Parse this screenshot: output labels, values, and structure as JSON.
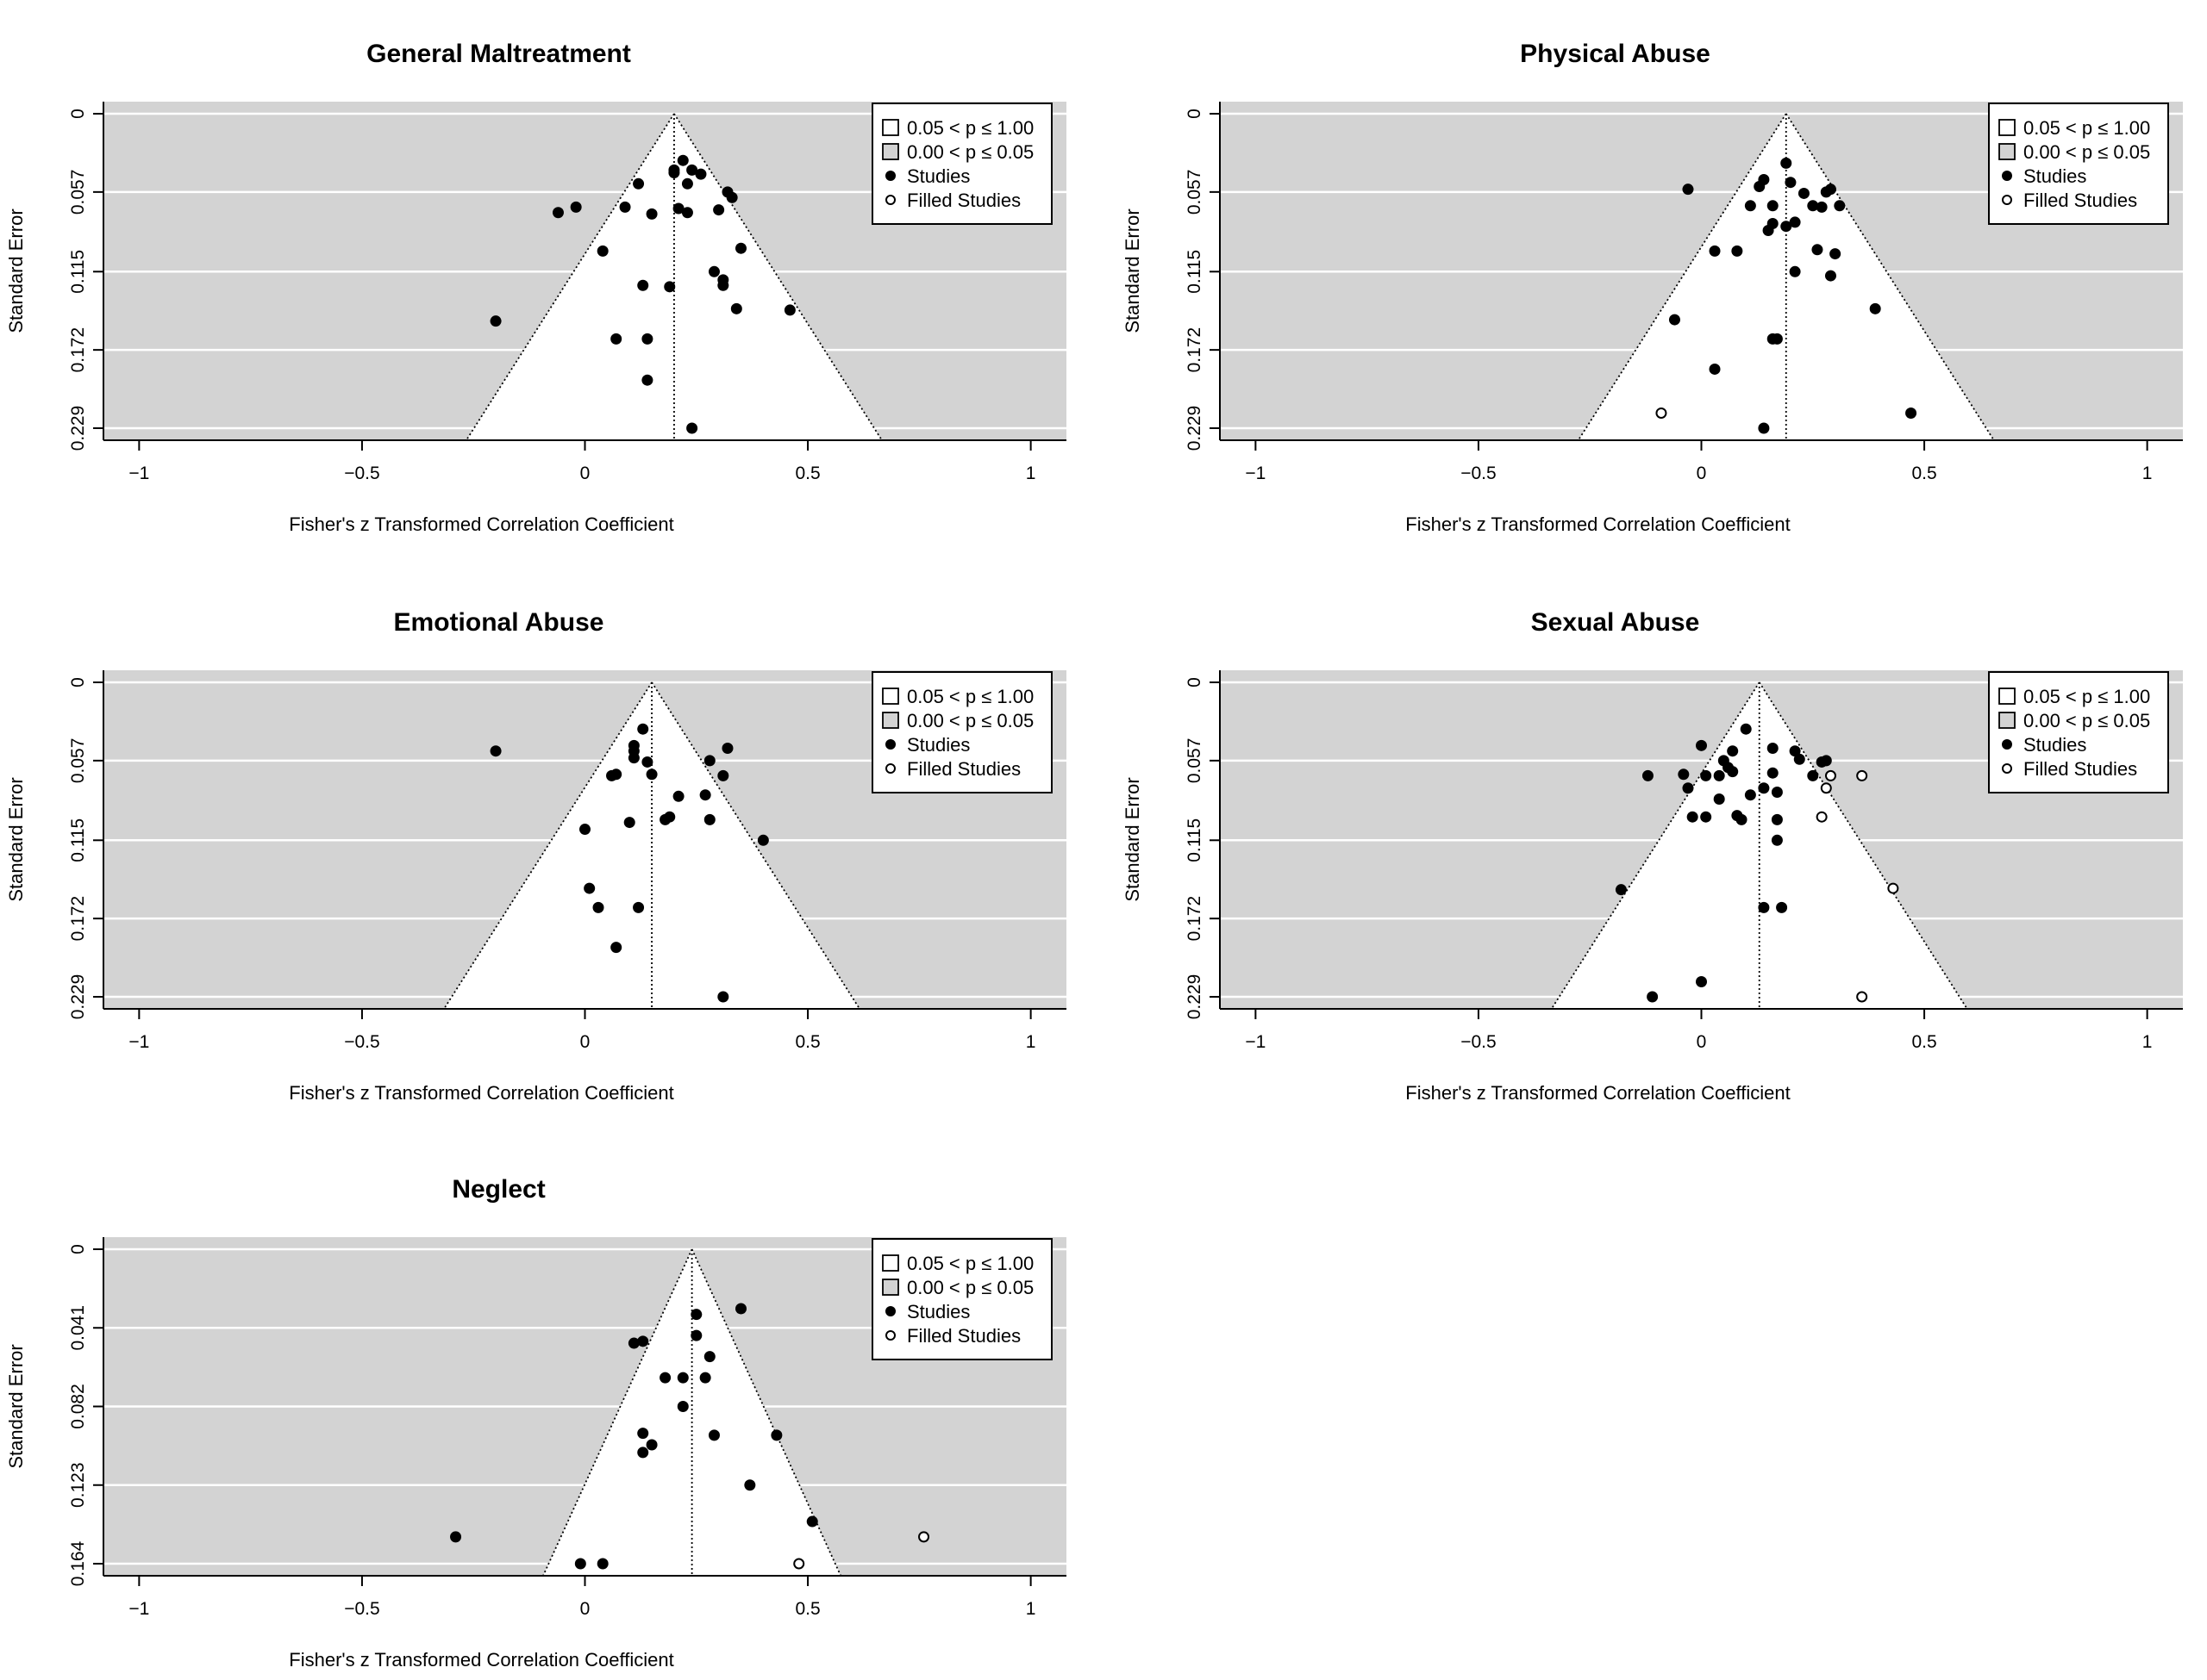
{
  "chart_data": [
    {
      "type": "scatter",
      "subtype": "funnel",
      "title": "General Maltreatment",
      "xlabel": "Fisher's z Transformed Correlation Coefficient",
      "ylabel": "Standard Error",
      "xlim": [
        -1.08,
        1.08
      ],
      "ylim": [
        0.229,
        0
      ],
      "xticks": [
        "−1",
        "−0.5",
        "0",
        "0.5",
        "1"
      ],
      "xtick_values": [
        -1,
        -0.5,
        0,
        0.5,
        1
      ],
      "yticks": [
        "0",
        "0.057",
        "0.115",
        "0.172",
        "0.229"
      ],
      "ytick_values": [
        0,
        0.057,
        0.115,
        0.172,
        0.229
      ],
      "estimate": 0.2,
      "legend": [
        "0.05 < p ≤ 1.00",
        "0.00 < p ≤ 0.05",
        "Studies",
        "Filled Studies"
      ],
      "legend_position": "top-right",
      "studies": [
        [
          0.2,
          0.041
        ],
        [
          0.2,
          0.043
        ],
        [
          0.22,
          0.034
        ],
        [
          0.24,
          0.041
        ],
        [
          0.26,
          0.044
        ],
        [
          0.23,
          0.051
        ],
        [
          0.12,
          0.051
        ],
        [
          0.32,
          0.057
        ],
        [
          0.33,
          0.061
        ],
        [
          0.21,
          0.069
        ],
        [
          0.23,
          0.072
        ],
        [
          0.3,
          0.07
        ],
        [
          0.15,
          0.073
        ],
        [
          0.09,
          0.068
        ],
        [
          -0.02,
          0.068
        ],
        [
          -0.06,
          0.072
        ],
        [
          0.04,
          0.1
        ],
        [
          0.35,
          0.098
        ],
        [
          0.29,
          0.115
        ],
        [
          0.31,
          0.121
        ],
        [
          0.31,
          0.125
        ],
        [
          0.13,
          0.125
        ],
        [
          0.19,
          0.126
        ],
        [
          0.34,
          0.142
        ],
        [
          0.46,
          0.143
        ],
        [
          -0.2,
          0.151
        ],
        [
          0.07,
          0.164
        ],
        [
          0.14,
          0.164
        ],
        [
          0.14,
          0.194
        ],
        [
          0.24,
          0.229
        ]
      ],
      "filled_studies": []
    },
    {
      "type": "scatter",
      "subtype": "funnel",
      "title": "Physical Abuse",
      "xlabel": "Fisher's z Transformed Correlation Coefficient",
      "ylabel": "Standard Error",
      "xlim": [
        -1.08,
        1.08
      ],
      "ylim": [
        0.229,
        0
      ],
      "xticks": [
        "−1",
        "−0.5",
        "0",
        "0.5",
        "1"
      ],
      "xtick_values": [
        -1,
        -0.5,
        0,
        0.5,
        1
      ],
      "yticks": [
        "0",
        "0.057",
        "0.115",
        "0.172",
        "0.229"
      ],
      "ytick_values": [
        0,
        0.057,
        0.115,
        0.172,
        0.229
      ],
      "estimate": 0.19,
      "legend": [
        "0.05 < p ≤ 1.00",
        "0.00 < p ≤ 0.05",
        "Studies",
        "Filled Studies"
      ],
      "legend_position": "top-right",
      "studies": [
        [
          0.19,
          0.036
        ],
        [
          0.14,
          0.048
        ],
        [
          0.2,
          0.05
        ],
        [
          0.13,
          0.053
        ],
        [
          0.23,
          0.058
        ],
        [
          0.28,
          0.057
        ],
        [
          0.29,
          0.055
        ],
        [
          -0.03,
          0.055
        ],
        [
          0.11,
          0.067
        ],
        [
          0.16,
          0.067
        ],
        [
          0.25,
          0.067
        ],
        [
          0.27,
          0.068
        ],
        [
          0.31,
          0.067
        ],
        [
          0.21,
          0.079
        ],
        [
          0.19,
          0.082
        ],
        [
          0.16,
          0.08
        ],
        [
          0.15,
          0.085
        ],
        [
          0.03,
          0.1
        ],
        [
          0.08,
          0.1
        ],
        [
          0.26,
          0.099
        ],
        [
          0.3,
          0.102
        ],
        [
          0.21,
          0.115
        ],
        [
          0.29,
          0.118
        ],
        [
          0.39,
          0.142
        ],
        [
          -0.06,
          0.15
        ],
        [
          0.16,
          0.164
        ],
        [
          0.17,
          0.164
        ],
        [
          0.03,
          0.186
        ],
        [
          0.47,
          0.218
        ],
        [
          0.14,
          0.229
        ]
      ],
      "filled_studies": [
        [
          -0.09,
          0.218
        ]
      ]
    },
    {
      "type": "scatter",
      "subtype": "funnel",
      "title": "Emotional Abuse",
      "xlabel": "Fisher's z Transformed Correlation Coefficient",
      "ylabel": "Standard Error",
      "xlim": [
        -1.08,
        1.08
      ],
      "ylim": [
        0.229,
        0
      ],
      "xticks": [
        "−1",
        "−0.5",
        "0",
        "0.5",
        "1"
      ],
      "xtick_values": [
        -1,
        -0.5,
        0,
        0.5,
        1
      ],
      "yticks": [
        "0",
        "0.057",
        "0.115",
        "0.172",
        "0.229"
      ],
      "ytick_values": [
        0,
        0.057,
        0.115,
        0.172,
        0.229
      ],
      "estimate": 0.15,
      "legend": [
        "0.05 < p ≤ 1.00",
        "0.00 < p ≤ 0.05",
        "Studies",
        "Filled Studies"
      ],
      "legend_position": "top-right",
      "studies": [
        [
          0.13,
          0.034
        ],
        [
          0.11,
          0.046
        ],
        [
          0.11,
          0.05
        ],
        [
          0.11,
          0.055
        ],
        [
          0.14,
          0.058
        ],
        [
          0.32,
          0.048
        ],
        [
          0.28,
          0.057
        ],
        [
          -0.2,
          0.05
        ],
        [
          0.07,
          0.067
        ],
        [
          0.06,
          0.068
        ],
        [
          0.15,
          0.067
        ],
        [
          0.31,
          0.068
        ],
        [
          0.21,
          0.083
        ],
        [
          0.27,
          0.082
        ],
        [
          0.19,
          0.098
        ],
        [
          0.18,
          0.1
        ],
        [
          0.28,
          0.1
        ],
        [
          0.1,
          0.102
        ],
        [
          0.0,
          0.107
        ],
        [
          0.4,
          0.115
        ],
        [
          0.01,
          0.15
        ],
        [
          0.03,
          0.164
        ],
        [
          0.12,
          0.164
        ],
        [
          0.07,
          0.193
        ],
        [
          0.31,
          0.229
        ]
      ],
      "filled_studies": []
    },
    {
      "type": "scatter",
      "subtype": "funnel",
      "title": "Sexual Abuse",
      "xlabel": "Fisher's z Transformed Correlation Coefficient",
      "ylabel": "Standard Error",
      "xlim": [
        -1.08,
        1.08
      ],
      "ylim": [
        0.229,
        0
      ],
      "xticks": [
        "−1",
        "−0.5",
        "0",
        "0.5",
        "1"
      ],
      "xtick_values": [
        -1,
        -0.5,
        0,
        0.5,
        1
      ],
      "yticks": [
        "0",
        "0.057",
        "0.115",
        "0.172",
        "0.229"
      ],
      "ytick_values": [
        0,
        0.057,
        0.115,
        0.172,
        0.229
      ],
      "estimate": 0.13,
      "legend": [
        "0.05 < p ≤ 1.00",
        "0.00 < p ≤ 0.05",
        "Studies",
        "Filled Studies"
      ],
      "legend_position": "top-right",
      "studies": [
        [
          0.1,
          0.034
        ],
        [
          0.0,
          0.046
        ],
        [
          0.07,
          0.05
        ],
        [
          0.16,
          0.048
        ],
        [
          0.21,
          0.05
        ],
        [
          0.05,
          0.057
        ],
        [
          0.06,
          0.062
        ],
        [
          0.22,
          0.056
        ],
        [
          0.27,
          0.058
        ],
        [
          0.28,
          0.057
        ],
        [
          -0.12,
          0.068
        ],
        [
          -0.04,
          0.067
        ],
        [
          0.01,
          0.068
        ],
        [
          0.04,
          0.068
        ],
        [
          0.07,
          0.065
        ],
        [
          0.16,
          0.066
        ],
        [
          0.25,
          0.068
        ],
        [
          -0.03,
          0.077
        ],
        [
          0.14,
          0.077
        ],
        [
          0.17,
          0.08
        ],
        [
          0.04,
          0.085
        ],
        [
          0.11,
          0.082
        ],
        [
          -0.02,
          0.098
        ],
        [
          0.01,
          0.098
        ],
        [
          0.08,
          0.097
        ],
        [
          0.09,
          0.1
        ],
        [
          0.17,
          0.1
        ],
        [
          0.17,
          0.115
        ],
        [
          -0.18,
          0.151
        ],
        [
          0.14,
          0.164
        ],
        [
          0.18,
          0.164
        ],
        [
          0.0,
          0.218
        ],
        [
          -0.11,
          0.229
        ]
      ],
      "filled_studies": [
        [
          0.29,
          0.068
        ],
        [
          0.36,
          0.068
        ],
        [
          0.28,
          0.077
        ],
        [
          0.27,
          0.098
        ],
        [
          0.43,
          0.15
        ],
        [
          0.36,
          0.229
        ]
      ]
    },
    {
      "type": "scatter",
      "subtype": "funnel",
      "title": "Neglect",
      "xlabel": "Fisher's z Transformed Correlation Coefficient",
      "ylabel": "Standard Error",
      "xlim": [
        -1.08,
        1.08
      ],
      "ylim": [
        0.164,
        0
      ],
      "xticks": [
        "−1",
        "−0.5",
        "0",
        "0.5",
        "1"
      ],
      "xtick_values": [
        -1,
        -0.5,
        0,
        0.5,
        1
      ],
      "yticks": [
        "0",
        "0.041",
        "0.082",
        "0.123",
        "0.164"
      ],
      "ytick_values": [
        0,
        0.041,
        0.082,
        0.123,
        0.164
      ],
      "estimate": 0.24,
      "legend": [
        "0.05 < p ≤ 1.00",
        "0.00 < p ≤ 0.05",
        "Studies",
        "Filled Studies"
      ],
      "legend_position": "top-right",
      "studies": [
        [
          0.35,
          0.031
        ],
        [
          0.25,
          0.034
        ],
        [
          0.25,
          0.045
        ],
        [
          0.13,
          0.048
        ],
        [
          0.11,
          0.049
        ],
        [
          0.28,
          0.056
        ],
        [
          0.18,
          0.067
        ],
        [
          0.22,
          0.067
        ],
        [
          0.27,
          0.067
        ],
        [
          0.22,
          0.082
        ],
        [
          0.13,
          0.096
        ],
        [
          0.29,
          0.097
        ],
        [
          0.43,
          0.097
        ],
        [
          0.15,
          0.102
        ],
        [
          0.13,
          0.106
        ],
        [
          0.37,
          0.123
        ],
        [
          0.51,
          0.142
        ],
        [
          -0.29,
          0.15
        ],
        [
          -0.01,
          0.164
        ],
        [
          0.04,
          0.164
        ]
      ],
      "filled_studies": [
        [
          0.76,
          0.15
        ],
        [
          0.48,
          0.164
        ]
      ]
    }
  ]
}
